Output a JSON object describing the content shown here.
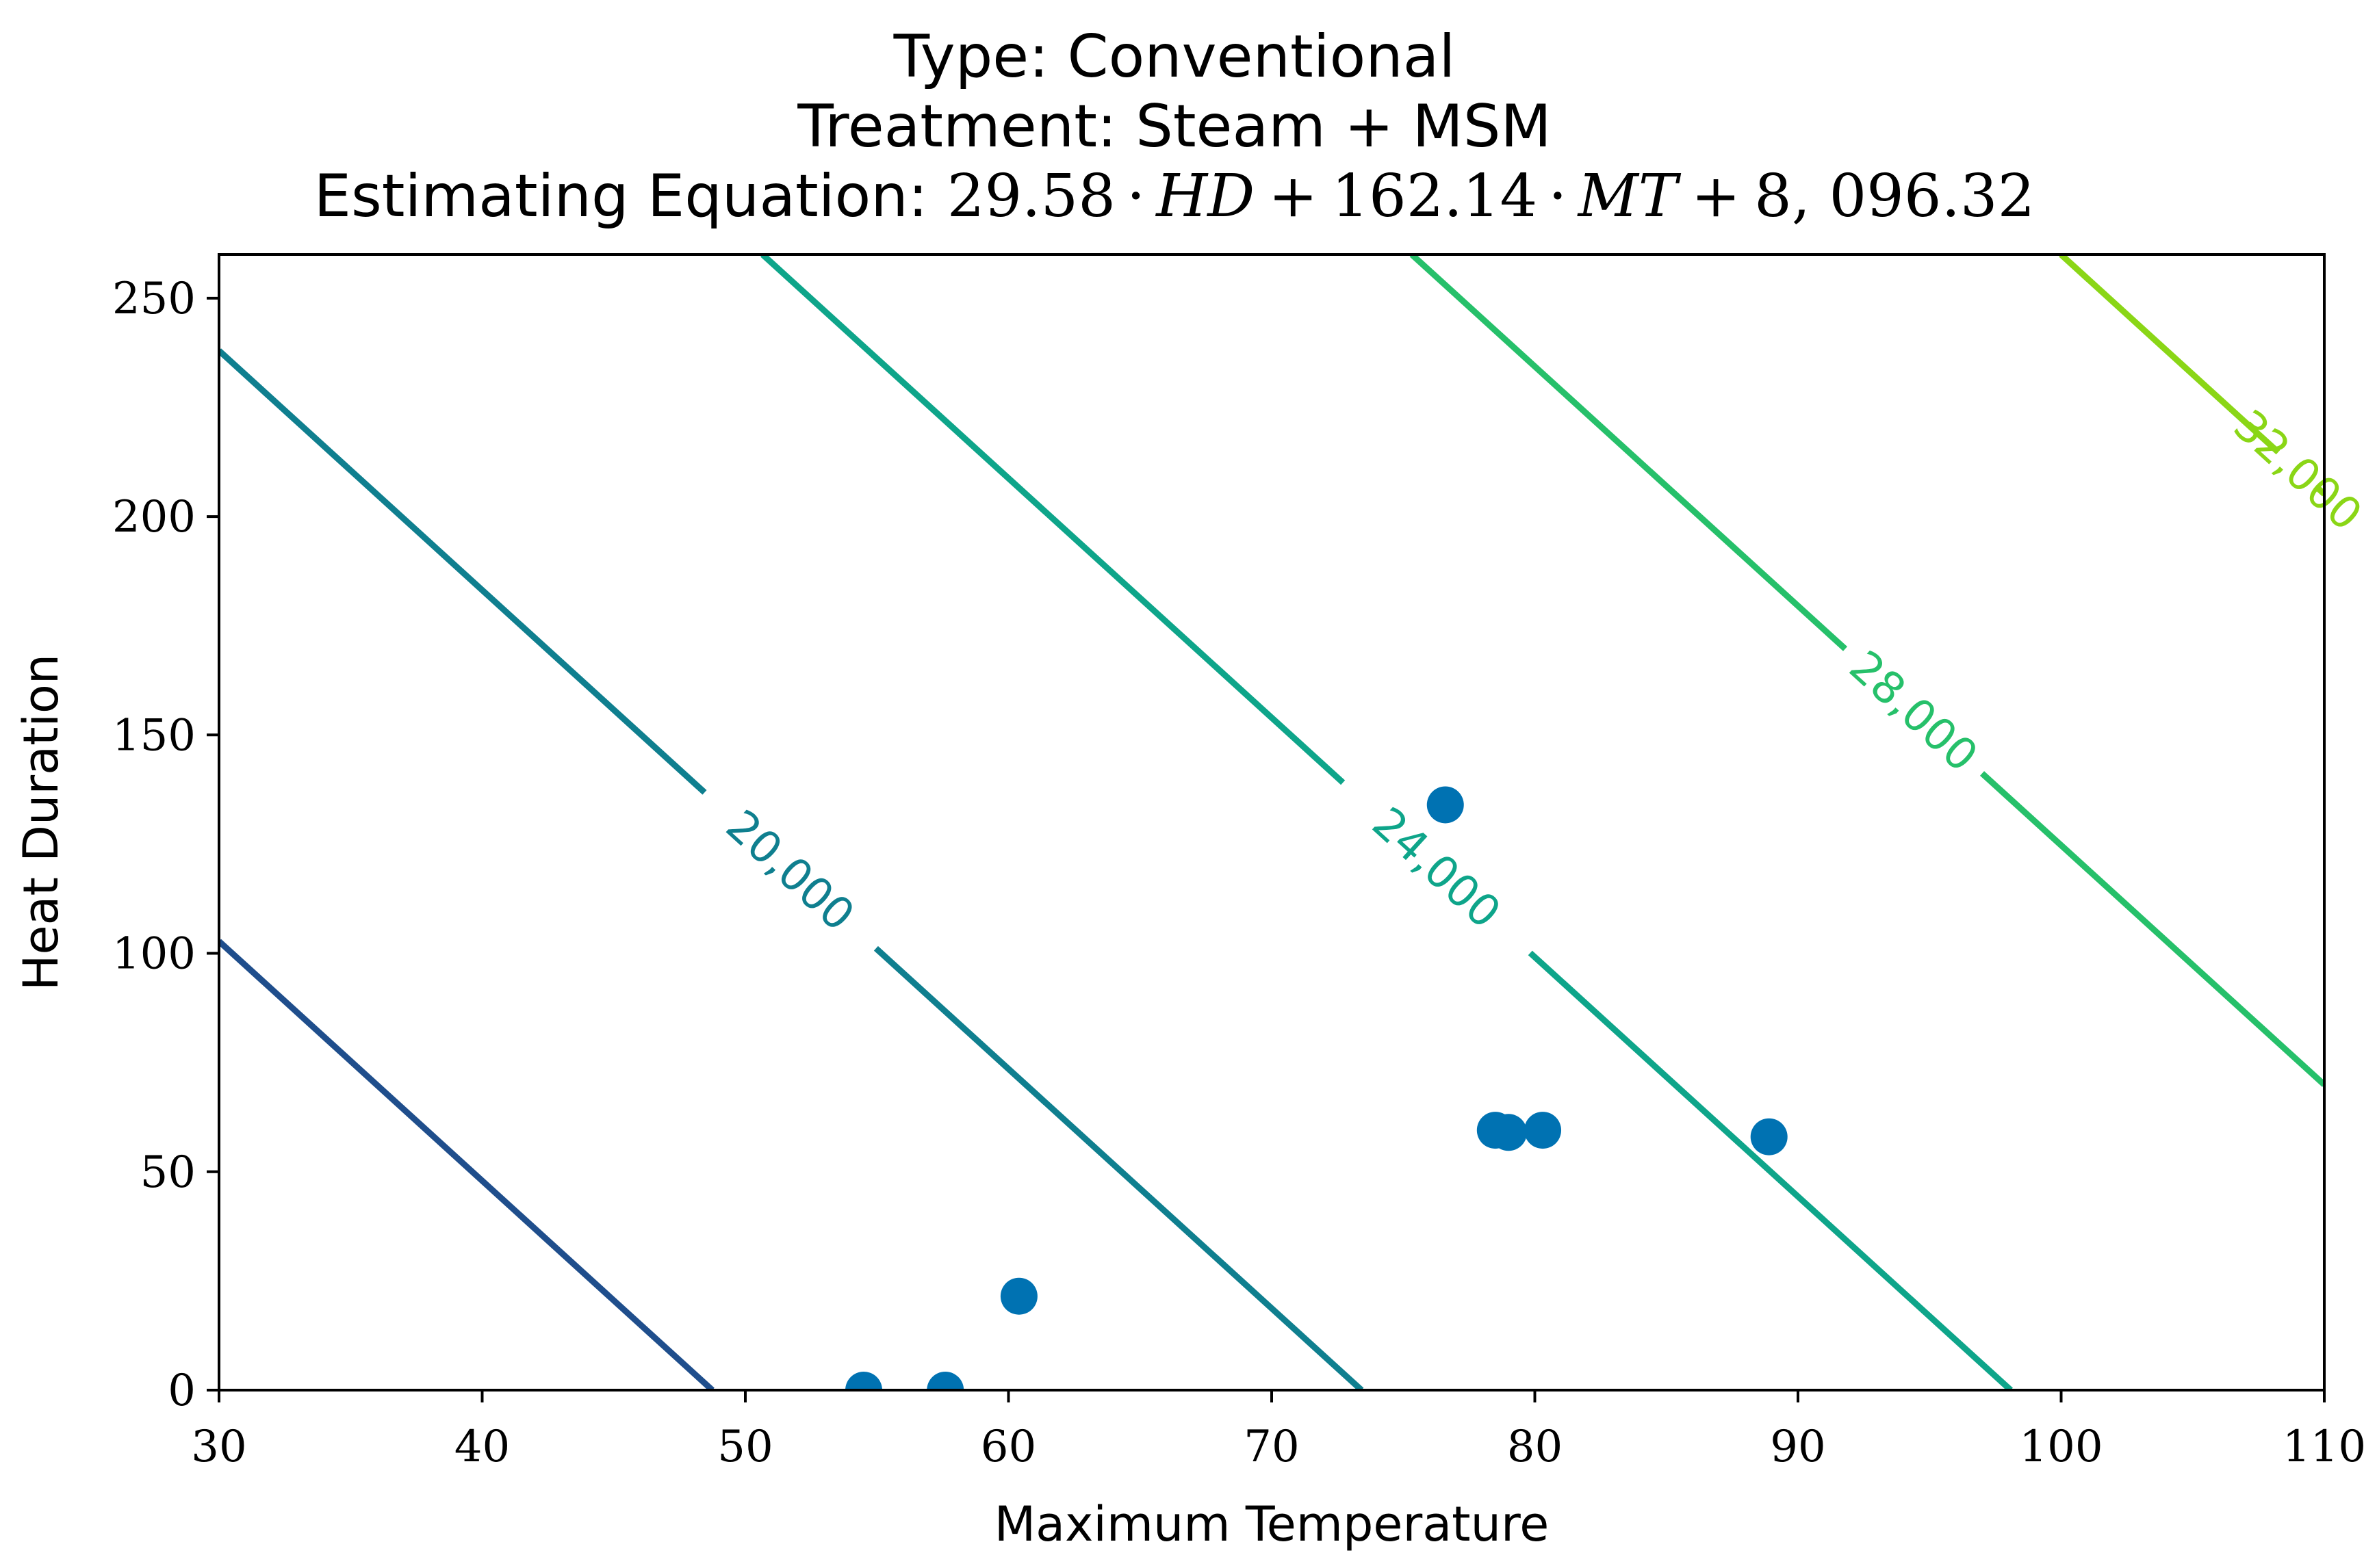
{
  "chart_data": {
    "type": "scatter",
    "title_lines": [
      "Type: Conventional",
      "Treatment: Steam + MSM"
    ],
    "equation": {
      "prefix": "Estimating Equation:",
      "coef_hd": "29.58",
      "var_hd": "HD",
      "coef_mt": "162.14",
      "var_mt": "MT",
      "intercept": "8, 096.32",
      "dot": "·",
      "plus": "+"
    },
    "coefficients": {
      "hd": 29.58,
      "mt": 162.14,
      "intercept": 8096.32
    },
    "xlabel": "Maximum Temperature",
    "ylabel": "Heat Duration",
    "xlim": [
      30,
      110
    ],
    "ylim": [
      0,
      260
    ],
    "xticks": [
      30,
      40,
      50,
      60,
      70,
      80,
      90,
      100,
      110
    ],
    "yticks": [
      0,
      50,
      100,
      150,
      200,
      250
    ],
    "points": [
      {
        "x": 54.5,
        "y": 0
      },
      {
        "x": 57.6,
        "y": 0
      },
      {
        "x": 60.4,
        "y": 21.5
      },
      {
        "x": 76.6,
        "y": 134
      },
      {
        "x": 78.5,
        "y": 59.5
      },
      {
        "x": 79.0,
        "y": 59
      },
      {
        "x": 80.3,
        "y": 59.5
      },
      {
        "x": 88.9,
        "y": 58
      }
    ],
    "point_color": "#0072b2",
    "contours": [
      {
        "level": 16000,
        "label": "",
        "color": "#1f4e8c"
      },
      {
        "level": 20000,
        "label": "20,000",
        "color": "#0f7f8f"
      },
      {
        "level": 24000,
        "label": "24,000",
        "color": "#0ea58a"
      },
      {
        "level": 28000,
        "label": "28,000",
        "color": "#26c06a"
      },
      {
        "level": 32000,
        "label": "32,000",
        "color": "#8ad616"
      }
    ]
  }
}
